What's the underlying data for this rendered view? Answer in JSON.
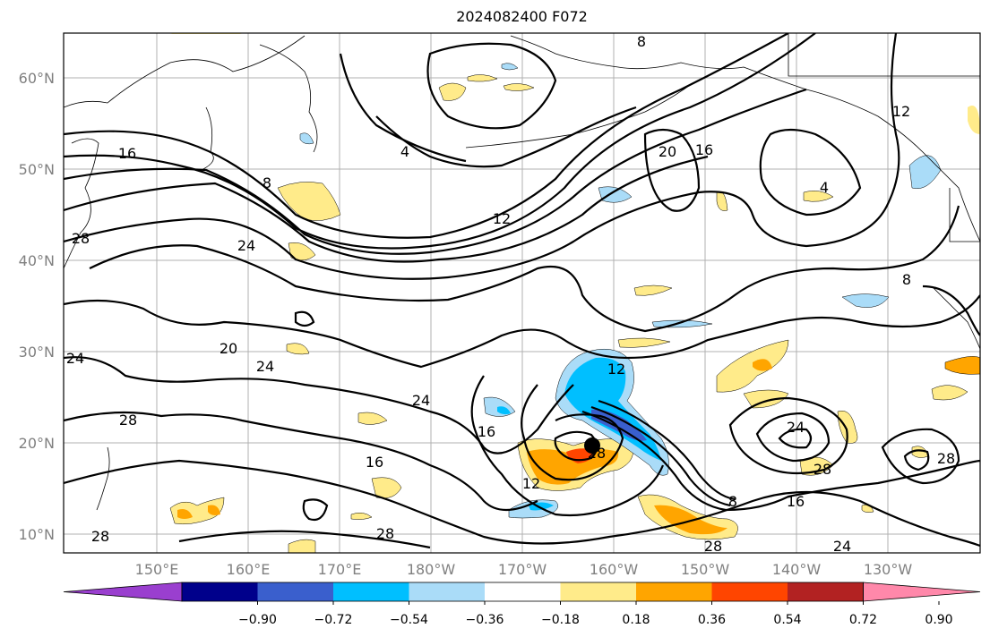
{
  "title": "2024082400 F072",
  "map": {
    "lat_labels": [
      {
        "text": "60°N",
        "lat": 60
      },
      {
        "text": "50°N",
        "lat": 50
      },
      {
        "text": "40°N",
        "lat": 40
      },
      {
        "text": "30°N",
        "lat": 30
      },
      {
        "text": "20°N",
        "lat": 20
      },
      {
        "text": "10°N",
        "lat": 10
      }
    ],
    "lon_labels": [
      {
        "text": "150°E",
        "lon": 150
      },
      {
        "text": "160°E",
        "lon": 160
      },
      {
        "text": "170°E",
        "lon": 170
      },
      {
        "text": "180°W",
        "lon": 180
      },
      {
        "text": "170°W",
        "lon": 190
      },
      {
        "text": "160°W",
        "lon": 200
      },
      {
        "text": "150°W",
        "lon": 210
      },
      {
        "text": "140°W",
        "lon": 220
      },
      {
        "text": "130°W",
        "lon": 230
      }
    ],
    "contour_labels": [
      "4",
      "8",
      "12",
      "16",
      "20",
      "24",
      "28"
    ],
    "center_marker": "storm-center-dot"
  },
  "colorbar": {
    "ticks": [
      "−0.90",
      "−0.72",
      "−0.54",
      "−0.36",
      "−0.18",
      "0.18",
      "0.36",
      "0.54",
      "0.72",
      "0.90"
    ],
    "colors": [
      "#9a3fcf",
      "#00008b",
      "#3a5fcd",
      "#00bfff",
      "#aadcf8",
      "#ffffff",
      "#ffeb8a",
      "#ffa500",
      "#ff4500",
      "#b22222",
      "#ff88aa"
    ]
  }
}
